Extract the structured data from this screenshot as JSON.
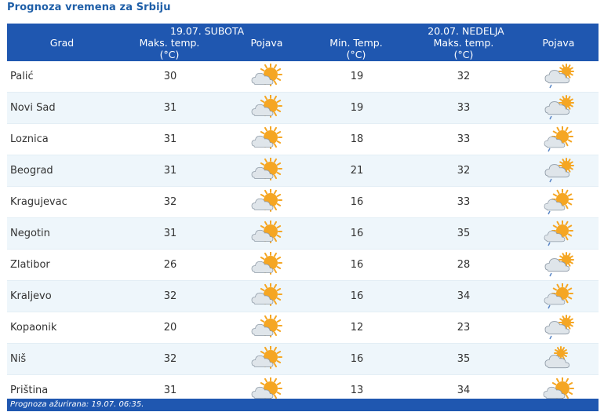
{
  "page": {
    "title": "Prognoza vremena za Srbiju"
  },
  "header": {
    "grad": "Grad",
    "day1": {
      "date": "19.07. SUBOTA",
      "max_l1": "Maks. temp.",
      "max_l2": "(°C)",
      "pojava": "Pojava"
    },
    "day2": {
      "date": "20.07. NEDELJA",
      "min_l1": "Min. Temp.",
      "min_l2": "(°C)",
      "max_l1": "Maks. temp.",
      "max_l2": "(°C)",
      "pojava": "Pojava"
    }
  },
  "rows": [
    {
      "city": "Palić",
      "max1": "30",
      "icon1": "sun-cloud-icon",
      "min2": "19",
      "max2": "32",
      "icon2": "cloud-sun-rain-icon"
    },
    {
      "city": "Novi Sad",
      "max1": "31",
      "icon1": "sun-cloud-icon",
      "min2": "19",
      "max2": "33",
      "icon2": "cloud-sun-rain-icon"
    },
    {
      "city": "Loznica",
      "max1": "31",
      "icon1": "sun-cloud-icon",
      "min2": "18",
      "max2": "33",
      "icon2": "sun-cloud-rain-icon"
    },
    {
      "city": "Beograd",
      "max1": "31",
      "icon1": "sun-cloud-icon",
      "min2": "21",
      "max2": "32",
      "icon2": "cloud-sun-rain-icon"
    },
    {
      "city": "Kragujevac",
      "max1": "32",
      "icon1": "sun-cloud-icon",
      "min2": "16",
      "max2": "33",
      "icon2": "sun-cloud-rain-icon"
    },
    {
      "city": "Negotin",
      "max1": "31",
      "icon1": "sun-cloud-icon",
      "min2": "16",
      "max2": "35",
      "icon2": "sun-cloud-rain-icon"
    },
    {
      "city": "Zlatibor",
      "max1": "26",
      "icon1": "sun-cloud-icon",
      "min2": "16",
      "max2": "28",
      "icon2": "cloud-sun-rain-icon"
    },
    {
      "city": "Kraljevo",
      "max1": "32",
      "icon1": "sun-cloud-icon",
      "min2": "16",
      "max2": "34",
      "icon2": "sun-cloud-rain-icon"
    },
    {
      "city": "Kopaonik",
      "max1": "20",
      "icon1": "sun-cloud-icon",
      "min2": "12",
      "max2": "23",
      "icon2": "cloud-sun-rain-icon"
    },
    {
      "city": "Niš",
      "max1": "32",
      "icon1": "sun-cloud-icon",
      "min2": "16",
      "max2": "35",
      "icon2": "cloud-sun-icon"
    },
    {
      "city": "Priština",
      "max1": "31",
      "icon1": "sun-cloud-icon",
      "min2": "13",
      "max2": "34",
      "icon2": "sun-cloud-icon"
    }
  ],
  "footer": {
    "text": "Prognoza ažurirana:  19.07. 06:35."
  },
  "colors": {
    "header_bg": "#1f57b0",
    "title": "#1f5fa8",
    "row_alt": "#eef6fb",
    "sun": "#f5a623",
    "cloud": "#b8c2cc"
  }
}
